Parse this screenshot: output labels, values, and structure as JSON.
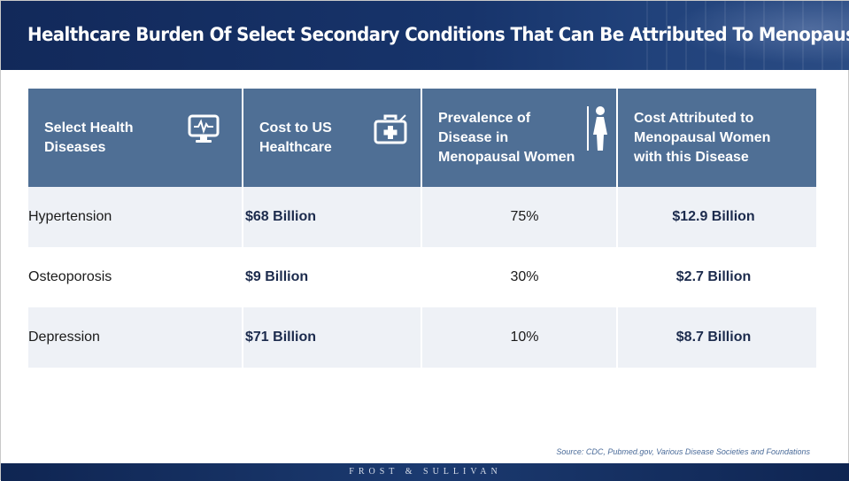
{
  "title": "Healthcare Burden Of Select Secondary Conditions That Can Be Attributed To Menopause",
  "columns": [
    {
      "label": "Select Health\nDiseases",
      "icon": "heart-monitor-icon"
    },
    {
      "label": "Cost to US\nHealthcare",
      "icon": "medical-kit-icon"
    },
    {
      "label": "Prevalence of\nDisease in\nMenopausal Women",
      "icon": "woman-icon"
    },
    {
      "label": "Cost Attributed to\nMenopausal Women\nwith this Disease",
      "icon": ""
    }
  ],
  "rows": [
    {
      "disease": "Hypertension",
      "cost": "$68 Billion",
      "prevalence": "75%",
      "attributed": "$12.9 Billion"
    },
    {
      "disease": "Osteoporosis",
      "cost": "$9 Billion",
      "prevalence": "30%",
      "attributed": "$2.7 Billion"
    },
    {
      "disease": "Depression",
      "cost": "$71 Billion",
      "prevalence": "10%",
      "attributed": "$8.7 Billion"
    }
  ],
  "source": "Source: CDC, Pubmed.gov, Various Disease Societies and Foundations",
  "footer": "FROST & SULLIVAN",
  "colors": {
    "header_bg": "#4f6f95",
    "title_bg": "#17346b",
    "row_shade": "#eef1f6"
  }
}
